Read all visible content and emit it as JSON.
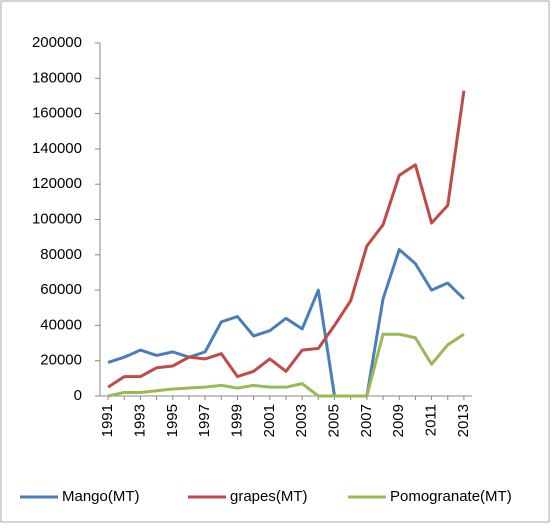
{
  "chart_data": {
    "type": "line",
    "categories": [
      "1991",
      null,
      "1993",
      null,
      "1995",
      null,
      "1997",
      null,
      "1999",
      null,
      "2001",
      null,
      "2003",
      null,
      "2005",
      null,
      "2007",
      null,
      "2009",
      null,
      "2011",
      null,
      "2013"
    ],
    "series": [
      {
        "name": "Mango(MT)",
        "color": "#4a7ebb",
        "values": [
          19000,
          22000,
          26000,
          23000,
          25000,
          22000,
          25000,
          42000,
          45000,
          34000,
          37000,
          44000,
          38000,
          60000,
          0,
          0,
          0,
          55000,
          83000,
          75000,
          60000,
          64000,
          55000
        ]
      },
      {
        "name": "grapes(MT)",
        "color": "#be4b48",
        "values": [
          5000,
          11000,
          11000,
          16000,
          17000,
          22000,
          21000,
          24000,
          11000,
          14000,
          21000,
          14000,
          26000,
          27000,
          40000,
          54000,
          85000,
          97000,
          125000,
          131000,
          98000,
          108000,
          173000
        ]
      },
      {
        "name": "Pomogranate(MT)",
        "color": "#98b954",
        "values": [
          0,
          2000,
          2000,
          3000,
          4000,
          4500,
          5000,
          6000,
          4500,
          6000,
          5000,
          5000,
          7000,
          0,
          0,
          0,
          0,
          35000,
          35000,
          33000,
          18000,
          29000,
          35000
        ]
      }
    ],
    "ylim": [
      0,
      200000
    ],
    "yticks": [
      0,
      20000,
      40000,
      60000,
      80000,
      100000,
      120000,
      140000,
      160000,
      180000,
      200000
    ],
    "grid": false,
    "legend": "bottom"
  }
}
